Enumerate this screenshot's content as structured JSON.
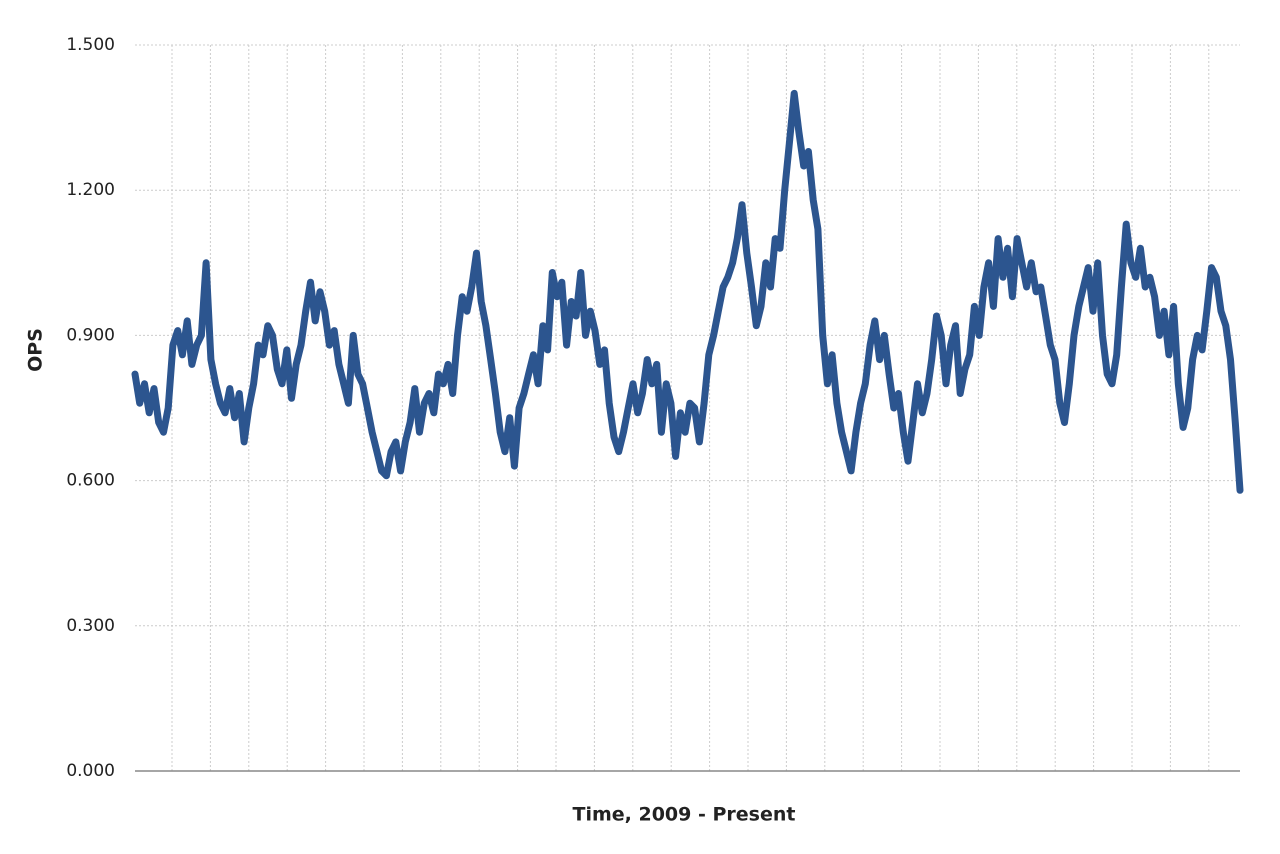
{
  "chart_data": {
    "type": "line",
    "x_label": "Time, 2009 - Present",
    "y_label": "OPS",
    "ylim": [
      0,
      1.5
    ],
    "yticks": [
      {
        "value": 0,
        "label": "0.000"
      },
      {
        "value": 0.3,
        "label": "0.300"
      },
      {
        "value": 0.6,
        "label": "0.600"
      },
      {
        "value": 0.9,
        "label": "0.900"
      },
      {
        "value": 1.2,
        "label": "1.200"
      },
      {
        "value": 1.5,
        "label": "1.500"
      }
    ],
    "grid": true,
    "series": [
      {
        "color": "#2c558f",
        "values": [
          0.82,
          0.76,
          0.8,
          0.74,
          0.79,
          0.72,
          0.7,
          0.75,
          0.88,
          0.91,
          0.86,
          0.93,
          0.84,
          0.88,
          0.9,
          1.05,
          0.85,
          0.8,
          0.76,
          0.74,
          0.79,
          0.73,
          0.78,
          0.68,
          0.75,
          0.8,
          0.88,
          0.86,
          0.92,
          0.9,
          0.83,
          0.8,
          0.87,
          0.77,
          0.84,
          0.88,
          0.95,
          1.01,
          0.93,
          0.99,
          0.95,
          0.88,
          0.91,
          0.84,
          0.8,
          0.76,
          0.9,
          0.82,
          0.8,
          0.75,
          0.7,
          0.66,
          0.62,
          0.61,
          0.66,
          0.68,
          0.62,
          0.68,
          0.72,
          0.79,
          0.7,
          0.76,
          0.78,
          0.74,
          0.82,
          0.8,
          0.84,
          0.78,
          0.9,
          0.98,
          0.95,
          1.0,
          1.07,
          0.97,
          0.92,
          0.85,
          0.78,
          0.7,
          0.66,
          0.73,
          0.63,
          0.75,
          0.78,
          0.82,
          0.86,
          0.8,
          0.92,
          0.87,
          1.03,
          0.98,
          1.01,
          0.88,
          0.97,
          0.94,
          1.03,
          0.9,
          0.95,
          0.91,
          0.84,
          0.87,
          0.76,
          0.69,
          0.66,
          0.7,
          0.75,
          0.8,
          0.74,
          0.78,
          0.85,
          0.8,
          0.84,
          0.7,
          0.8,
          0.76,
          0.65,
          0.74,
          0.7,
          0.76,
          0.75,
          0.68,
          0.76,
          0.86,
          0.9,
          0.95,
          1.0,
          1.02,
          1.05,
          1.1,
          1.17,
          1.07,
          1.0,
          0.92,
          0.96,
          1.05,
          1.0,
          1.1,
          1.08,
          1.2,
          1.3,
          1.4,
          1.32,
          1.25,
          1.28,
          1.18,
          1.12,
          0.9,
          0.8,
          0.86,
          0.76,
          0.7,
          0.66,
          0.62,
          0.7,
          0.76,
          0.8,
          0.88,
          0.93,
          0.85,
          0.9,
          0.82,
          0.75,
          0.78,
          0.7,
          0.64,
          0.72,
          0.8,
          0.74,
          0.78,
          0.85,
          0.94,
          0.9,
          0.8,
          0.88,
          0.92,
          0.78,
          0.83,
          0.86,
          0.96,
          0.9,
          1.0,
          1.05,
          0.96,
          1.1,
          1.02,
          1.08,
          0.98,
          1.1,
          1.05,
          1.0,
          1.05,
          0.99,
          1.0,
          0.94,
          0.88,
          0.85,
          0.76,
          0.72,
          0.8,
          0.9,
          0.96,
          1.0,
          1.04,
          0.95,
          1.05,
          0.9,
          0.82,
          0.8,
          0.86,
          1.0,
          1.13,
          1.05,
          1.02,
          1.08,
          1.0,
          1.02,
          0.98,
          0.9,
          0.95,
          0.86,
          0.96,
          0.8,
          0.71,
          0.75,
          0.85,
          0.9,
          0.87,
          0.95,
          1.04,
          1.02,
          0.95,
          0.92,
          0.85,
          0.72,
          0.58
        ]
      }
    ]
  }
}
